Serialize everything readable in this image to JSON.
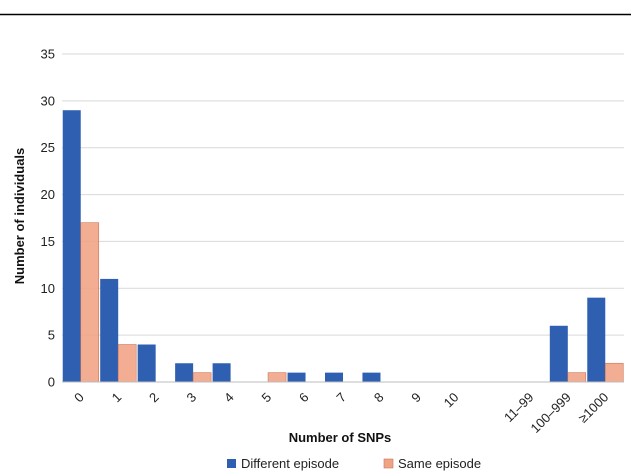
{
  "chart_data": {
    "type": "bar",
    "title": "",
    "xlabel": "Number of SNPs",
    "ylabel": "Number of individuals",
    "ylim": [
      0,
      35
    ],
    "yticks": [
      0,
      5,
      10,
      15,
      20,
      25,
      30,
      35
    ],
    "grid": true,
    "legend": "bottom",
    "categories": [
      "0",
      "1",
      "2",
      "3",
      "4",
      "5",
      "6",
      "7",
      "8",
      "9",
      "10",
      "",
      "11–99",
      "100–999",
      "≥1000"
    ],
    "series": [
      {
        "name": "Different episode",
        "color": "#2E5FB0",
        "values": [
          29,
          11,
          4,
          2,
          2,
          0,
          1,
          1,
          1,
          0,
          0,
          null,
          0,
          6,
          9
        ]
      },
      {
        "name": "Same episode",
        "color": "#F0A284",
        "values": [
          17,
          4,
          0,
          1,
          0,
          1,
          0,
          0,
          0,
          0,
          0,
          null,
          0,
          1,
          2
        ]
      }
    ]
  }
}
